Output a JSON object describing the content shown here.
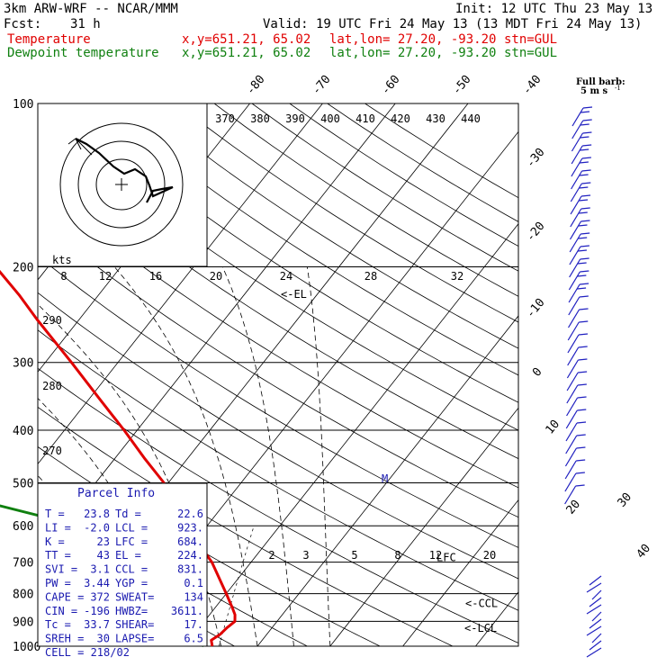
{
  "header": {
    "model": "3km ARW-WRF -- NCAR/MMM",
    "init": "Init: 12 UTC Thu 23 May 13",
    "fcst_label": "Fcst:",
    "fcst_value": "31 h",
    "valid": "Valid: 19 UTC Fri 24 May 13 (13 MDT Fri 24 May 13)",
    "temp_label": "Temperature",
    "dew_label": "Dewpoint temperature",
    "xy": "x,y=651.21, 65.02",
    "latlon": "lat,lon= 27.20, -93.20",
    "stn": "stn=GUL"
  },
  "colors": {
    "temperature": "#e00000",
    "dewpoint": "#108010"
  },
  "chart_data": {
    "type": "line",
    "chart_kind": "skew-T log-p sounding",
    "y_axis": {
      "label": "pressure (hPa)",
      "scale": "log",
      "range": [
        1000,
        100
      ],
      "ticks": [
        100,
        200,
        300,
        400,
        500,
        600,
        700,
        800,
        900,
        1000
      ]
    },
    "isotherm_labels": [
      -80,
      -70,
      -60,
      -50,
      -40,
      -30,
      -20,
      -10,
      0,
      10,
      20,
      30,
      40
    ],
    "theta_e_labels": [
      370,
      380,
      390,
      400,
      410,
      420,
      430,
      440
    ],
    "theta_labels": [
      290,
      280,
      270
    ],
    "mixing_ratio_top_labels": [
      8,
      12,
      16,
      20,
      24,
      28,
      32
    ],
    "mixing_ratio_bottom_labels": [
      2,
      3,
      5,
      8,
      12,
      20
    ],
    "kts_label": "kts",
    "series": [
      {
        "name": "Temperature",
        "color": "#e00000",
        "points": [
          [
            1000,
            23.8
          ],
          [
            975,
            23.0
          ],
          [
            950,
            23.6
          ],
          [
            925,
            23.8
          ],
          [
            900,
            24.2
          ],
          [
            875,
            23.5
          ],
          [
            850,
            22.4
          ],
          [
            800,
            20.0
          ],
          [
            750,
            17.4
          ],
          [
            700,
            14.6
          ],
          [
            650,
            11.0
          ],
          [
            600,
            7.4
          ],
          [
            550,
            3.8
          ],
          [
            500,
            -0.6
          ],
          [
            450,
            -6.0
          ],
          [
            400,
            -11.8
          ],
          [
            350,
            -18.6
          ],
          [
            300,
            -26.4
          ],
          [
            250,
            -35.8
          ],
          [
            225,
            -41.0
          ],
          [
            200,
            -47.2
          ],
          [
            175,
            -54.6
          ],
          [
            150,
            -62.4
          ],
          [
            125,
            -68.0
          ],
          [
            100,
            -71.4
          ]
        ]
      },
      {
        "name": "Dewpoint temperature",
        "color": "#108010",
        "points": [
          [
            1000,
            22.6
          ],
          [
            975,
            21.0
          ],
          [
            950,
            19.8
          ],
          [
            925,
            18.6
          ],
          [
            900,
            16.6
          ],
          [
            875,
            14.8
          ],
          [
            850,
            12.4
          ],
          [
            800,
            8.6
          ],
          [
            750,
            4.8
          ],
          [
            700,
            1.8
          ],
          [
            650,
            -1.6
          ],
          [
            600,
            -7.6
          ],
          [
            550,
            -21.0
          ],
          [
            500,
            -32.0
          ],
          [
            470,
            -38.0
          ],
          [
            440,
            -38.6
          ],
          [
            400,
            -36.8
          ],
          [
            350,
            -40.6
          ],
          [
            300,
            -43.0
          ],
          [
            280,
            -48.0
          ],
          [
            250,
            -54.0
          ],
          [
            220,
            -60.6
          ],
          [
            200,
            -64.0
          ],
          [
            175,
            -70.0
          ],
          [
            160,
            -78.0
          ],
          [
            140,
            -86.0
          ],
          [
            120,
            -90.0
          ],
          [
            100,
            -94.0
          ]
        ]
      }
    ],
    "annotations": [
      {
        "text": "<-EL",
        "p": 224
      },
      {
        "text": "M",
        "p": 490
      },
      {
        "text": "LFC",
        "p": 684
      },
      {
        "text": "<-CCL",
        "p": 831
      },
      {
        "text": "<-LCL",
        "p": 923
      }
    ]
  },
  "barb_legend": {
    "line1": "Full barb:",
    "line2": "5 m s",
    "sup": "-1"
  },
  "parcel_info": {
    "title": "Parcel Info",
    "rows": [
      [
        "T  =",
        "23.8",
        "Td =",
        "22.6"
      ],
      [
        "LI =",
        "-2.0",
        "LCL =",
        "923."
      ],
      [
        "K  =",
        "23",
        "LFC =",
        "684."
      ],
      [
        "TT =",
        "43",
        "EL  =",
        "224."
      ],
      [
        "SVI =",
        "3.1",
        "CCL =",
        "831."
      ],
      [
        "PW =",
        "3.44",
        "YGP =",
        "0.1"
      ],
      [
        "CAPE =",
        "372",
        "SWEAT=",
        "134"
      ],
      [
        "CIN =",
        "-196",
        "HWBZ=",
        "3611."
      ],
      [
        "Tc =",
        "33.7",
        "SHEAR=",
        "17."
      ],
      [
        "SREH =",
        "30",
        "LAPSE=",
        "6.5"
      ]
    ],
    "cell": "CELL = 218/02"
  }
}
